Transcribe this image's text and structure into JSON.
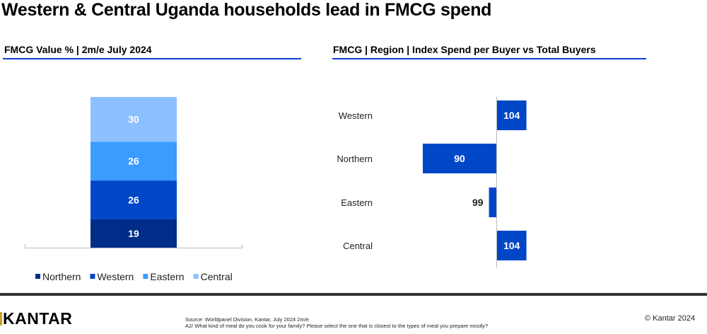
{
  "title": "Western & Central Uganda households lead in FMCG spend",
  "footer": {
    "logo": "KANTAR",
    "source_line1": "Source: Worldpanel Division, Kantar, July 2024 2m/e",
    "source_line2": "A2/ What kind of meal do you cook for your family? Please select the one that is closest to the types of meal you prepare mostly?",
    "copyright": "© Kantar 2024"
  },
  "chart_data": [
    {
      "type": "bar",
      "stacked": true,
      "title": "FMCG Value % | 2m/e July 2024",
      "legend_position": "bottom",
      "series": [
        {
          "name": "Northern",
          "values": [
            19
          ],
          "color": "#002d87"
        },
        {
          "name": "Western",
          "values": [
            26
          ],
          "color": "#0047c8"
        },
        {
          "name": "Eastern",
          "values": [
            26
          ],
          "color": "#3a9cff"
        },
        {
          "name": "Central",
          "values": [
            30
          ],
          "color": "#8cc0ff"
        }
      ]
    },
    {
      "type": "bar",
      "orientation": "horizontal",
      "title": "FMCG | Region | Index Spend per Buyer vs Total Buyers",
      "baseline": 100,
      "categories": [
        "Western",
        "Northern",
        "Eastern",
        "Central"
      ],
      "values": [
        104,
        90,
        99,
        104
      ],
      "color": "#0047c8"
    }
  ]
}
